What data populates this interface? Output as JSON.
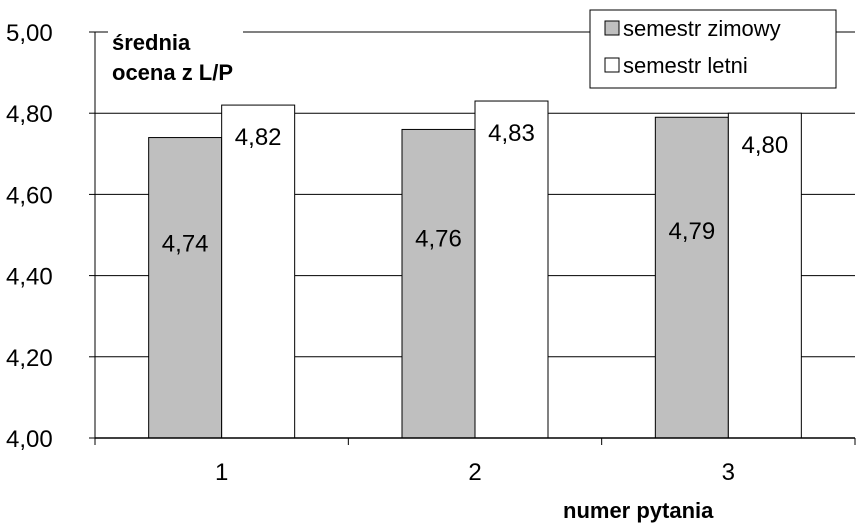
{
  "chart_data": {
    "type": "bar",
    "categories": [
      "1",
      "2",
      "3"
    ],
    "series": [
      {
        "name": "semestr zimowy",
        "values": [
          4.74,
          4.76,
          4.79
        ],
        "labels": [
          "4,74",
          "4,76",
          "4,79"
        ],
        "color": "#bfbfbf"
      },
      {
        "name": "semestr letni",
        "values": [
          4.82,
          4.83,
          4.8
        ],
        "labels": [
          "4,82",
          "4,83",
          "4,80"
        ],
        "color": "#ffffff"
      }
    ],
    "ylabel_line1": "średnia",
    "ylabel_line2": "ocena z L/P",
    "xlabel": "numer pytania",
    "ylim": [
      4.0,
      5.0
    ],
    "yticks": [
      4.0,
      4.2,
      4.4,
      4.6,
      4.8,
      5.0
    ],
    "ytick_labels": [
      "4,00",
      "4,20",
      "4,40",
      "4,60",
      "4,80",
      "5,00"
    ],
    "grid": true,
    "legend_position": "top-right",
    "colors": {
      "grid": "#000000",
      "bar_stroke": "#000000"
    }
  }
}
